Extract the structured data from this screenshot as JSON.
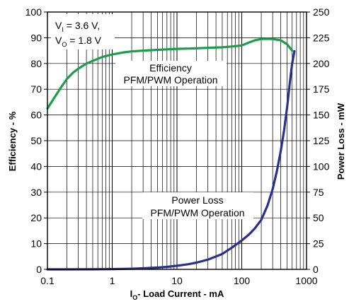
{
  "chart_data": {
    "type": "line",
    "x_axis": {
      "label_main": "I",
      "label_sub": "O",
      "label_rest": "- Load Current - mA",
      "scale": "log",
      "range": [
        0.1,
        1000
      ],
      "ticks": [
        "0.1",
        "1",
        "10",
        "100",
        "1000"
      ]
    },
    "y_axis_left": {
      "label": "Efficiency - %",
      "range": [
        0,
        100
      ],
      "ticks": [
        "0",
        "10",
        "20",
        "30",
        "40",
        "50",
        "60",
        "70",
        "80",
        "90",
        "100"
      ]
    },
    "y_axis_right": {
      "label": "Power Loss - mW",
      "range": [
        0,
        250
      ],
      "ticks": [
        "0",
        "25",
        "50",
        "75",
        "100",
        "125",
        "150",
        "175",
        "200",
        "225",
        "250"
      ]
    },
    "grid": true,
    "conditions": {
      "vi_main": "V",
      "vi_sub": "I",
      "vi_rest": " = 3.6 V,",
      "vo_main": "V",
      "vo_sub": "O",
      "vo_rest": " = 1.8 V"
    },
    "annotations": {
      "efficiency": [
        "Efficiency",
        "PFM/PWM Operation"
      ],
      "power_loss": [
        "Power Loss",
        "PFM/PWM Operation"
      ]
    },
    "series": [
      {
        "axis": "left",
        "color": "#1a9e4a",
        "x": [
          0.1,
          0.13,
          0.16,
          0.2,
          0.25,
          0.3,
          0.4,
          0.5,
          0.7,
          1,
          1.5,
          2,
          3,
          5,
          7,
          10,
          15,
          20,
          30,
          50,
          70,
          100,
          130,
          160,
          200,
          250,
          300,
          400,
          500,
          600
        ],
        "y": [
          62.5,
          67,
          70.5,
          74,
          76.5,
          78,
          80,
          81,
          82.5,
          83.5,
          84.3,
          84.7,
          85,
          85.3,
          85.5,
          85.7,
          85.8,
          85.9,
          86.1,
          86.3,
          86.6,
          87,
          88.2,
          89,
          89.5,
          89.6,
          89.5,
          89,
          87.5,
          85
        ]
      },
      {
        "axis": "right",
        "color": "#2b2f8f",
        "x": [
          0.1,
          0.2,
          0.5,
          1,
          2,
          3,
          5,
          7,
          10,
          15,
          20,
          30,
          50,
          70,
          100,
          130,
          160,
          200,
          250,
          300,
          350,
          400,
          450,
          500,
          550,
          600,
          650
        ],
        "y": [
          0,
          0,
          0.1,
          0.3,
          0.6,
          1,
          1.7,
          2.4,
          3.5,
          5,
          6.5,
          9.5,
          15,
          21,
          28,
          34,
          40,
          48,
          62,
          78,
          96,
          115,
          135,
          157,
          180,
          200,
          212
        ]
      }
    ]
  }
}
